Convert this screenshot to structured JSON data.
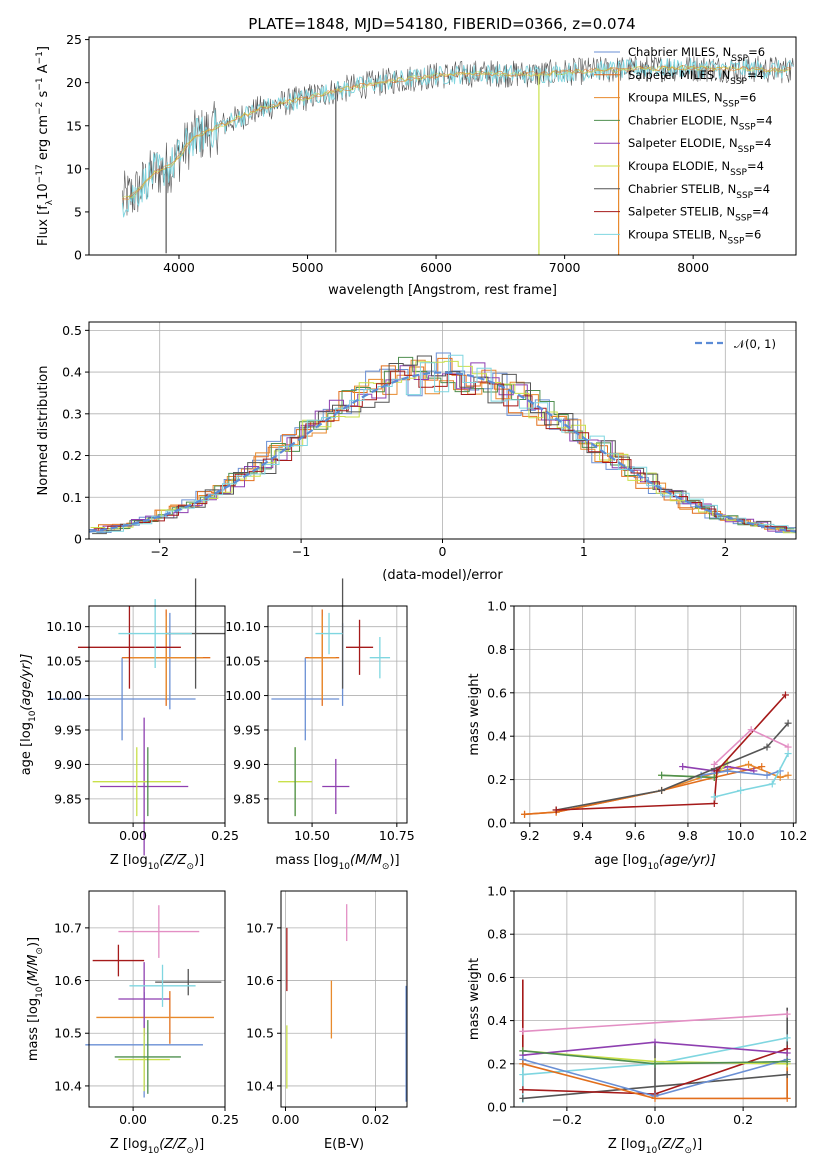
{
  "figure": {
    "title": "PLATE=1848, MJD=54180, FIBERID=0366, z=0.074"
  },
  "models": [
    {
      "name": "Chabrier MILES",
      "nssp": "6",
      "color": "#6a8fd4"
    },
    {
      "name": "Salpeter MILES",
      "nssp": "4",
      "color": "#e26f1c"
    },
    {
      "name": "Kroupa MILES",
      "nssp": "6",
      "color": "#e88a2d"
    },
    {
      "name": "Chabrier ELODIE",
      "nssp": "4",
      "color": "#4f8f4f"
    },
    {
      "name": "Salpeter ELODIE",
      "nssp": "4",
      "color": "#8e3fb0"
    },
    {
      "name": "Kroupa ELODIE",
      "nssp": "4",
      "color": "#c9e04a"
    },
    {
      "name": "Chabrier STELIB",
      "nssp": "4",
      "color": "#555555"
    },
    {
      "name": "Salpeter STELIB",
      "nssp": "4",
      "color": "#a51a1a"
    },
    {
      "name": "Kroupa STELIB",
      "nssp": "6",
      "color": "#7fd6e0"
    }
  ],
  "chart_data": [
    {
      "id": "spectrum",
      "type": "line",
      "xlabel": "wavelength [Angstrom, rest frame]",
      "ylabel_main": "Flux [f",
      "ylabel_sub": "λ",
      "ylabel_rest": "10",
      "ylabel_sup1": "−17",
      "ylabel_mid": " erg cm",
      "ylabel_sup2": "−2",
      "ylabel_mid2": " s",
      "ylabel_sup3": "−1",
      "ylabel_mid3": " A",
      "ylabel_sup4": "−1",
      "ylabel_end": "]",
      "xlim": [
        3300,
        8800
      ],
      "ylim": [
        0,
        25.3
      ],
      "xticks": [
        4000,
        5000,
        6000,
        7000,
        8000
      ],
      "yticks": [
        0,
        5,
        10,
        15,
        20,
        25
      ],
      "continuum": {
        "x": [
          3560,
          3650,
          3800,
          3950,
          4100,
          4250,
          4400,
          4600,
          4800,
          5000,
          5200,
          5400,
          5600,
          5800,
          6000,
          6200,
          6400,
          6600,
          6800,
          7000,
          7200,
          7400,
          7600,
          7800,
          8000,
          8200,
          8400,
          8600,
          8780
        ],
        "y": [
          6.5,
          7.0,
          9.5,
          10.5,
          13.5,
          14.5,
          15.5,
          16.8,
          17.6,
          18.3,
          19.0,
          19.6,
          20.1,
          20.5,
          20.8,
          21.0,
          21.1,
          21.0,
          21.0,
          21.2,
          21.4,
          21.5,
          21.6,
          21.7,
          21.7,
          21.6,
          21.6,
          21.5,
          21.5
        ]
      },
      "dropouts": [
        {
          "x": 3900,
          "y": 0.2
        },
        {
          "x": 5220,
          "y": 0.3
        },
        {
          "x": 6800,
          "y": 0.0
        },
        {
          "x": 7420,
          "y": 0.0
        }
      ],
      "legend": "upper right"
    },
    {
      "id": "residuals",
      "type": "histogram",
      "xlabel": "(data-model)/error",
      "ylabel": "Normed distribution",
      "xlim": [
        -2.5,
        2.5
      ],
      "ylim": [
        0,
        0.52
      ],
      "xticks": [
        -2,
        -1,
        0,
        1,
        2
      ],
      "yticks": [
        0,
        0.1,
        0.2,
        0.3,
        0.4,
        0.5
      ],
      "bin_width": 0.1,
      "reference_label": "𝒩(0, 1)",
      "reference_color": "#5b8bd6",
      "legend": "upper right"
    },
    {
      "id": "age-vs-Z",
      "type": "errorbar",
      "xlabel": "Z [log",
      "xlabel_sub": "10",
      "xlabel_rest": "(Z/Z",
      "xlabel_sub2": "⊙",
      "xlabel_end": ")]",
      "ylabel": "age  [log",
      "ylabel_sub": "10",
      "ylabel_rest": "(age/yr)]",
      "xlim": [
        -0.12,
        0.25
      ],
      "ylim": [
        9.815,
        10.13
      ],
      "xticks": [
        0.0,
        0.25
      ],
      "xticklabels": [
        "0.00",
        "0.25"
      ],
      "yticks": [
        9.85,
        9.9,
        9.95,
        10.0,
        10.05,
        10.1
      ],
      "yticklabels": [
        "9.85",
        "9.90",
        "9.95",
        "10.00",
        "10.05",
        "10.10"
      ],
      "points": [
        {
          "model": 0,
          "x": -0.03,
          "xerr": 0.2,
          "y": 9.995,
          "yerr": 0.06
        },
        {
          "model": 0,
          "x": 0.1,
          "xerr": 0.0,
          "y": 10.05,
          "yerr": 0.07
        },
        {
          "model": 1,
          "x": 0.09,
          "xerr": 0.12,
          "y": 10.055,
          "yerr": 0.07
        },
        {
          "model": 2,
          "x": 0.09,
          "xerr": 0.1,
          "y": 10.055,
          "yerr": 0.06
        },
        {
          "model": 4,
          "x": 0.03,
          "xerr": 0.12,
          "y": 9.868,
          "yerr": 0.1
        },
        {
          "model": 5,
          "x": 0.01,
          "xerr": 0.12,
          "y": 9.875,
          "yerr": 0.05
        },
        {
          "model": 3,
          "x": 0.04,
          "xerr": 0.0,
          "y": 9.875,
          "yerr": 0.05
        },
        {
          "model": 6,
          "x": 0.17,
          "xerr": 0.08,
          "y": 10.09,
          "yerr": 0.08
        },
        {
          "model": 7,
          "x": -0.01,
          "xerr": 0.14,
          "y": 10.07,
          "yerr": 0.06
        },
        {
          "model": 8,
          "x": 0.06,
          "xerr": 0.1,
          "y": 10.09,
          "yerr": 0.05
        }
      ]
    },
    {
      "id": "age-vs-mass",
      "type": "errorbar",
      "xlabel": "mass [log",
      "xlabel_sub": "10",
      "xlabel_rest": "(M/M",
      "xlabel_sub2": "⊙",
      "xlabel_end": ")]",
      "xlim": [
        10.37,
        10.78
      ],
      "ylim": [
        9.815,
        10.13
      ],
      "xticks": [
        10.5,
        10.75
      ],
      "xticklabels": [
        "10.50",
        "10.75"
      ],
      "yticks": [
        9.85,
        9.9,
        9.95,
        10.0,
        10.05,
        10.1
      ],
      "yticklabels": [
        "9.85",
        "9.90",
        "9.95",
        "10.00",
        "10.05",
        "10.10"
      ],
      "points": [
        {
          "model": 0,
          "x": 10.48,
          "xerr": 0.1,
          "y": 9.995,
          "yerr": 0.06
        },
        {
          "model": 0,
          "x": 10.59,
          "xerr": 0.0,
          "y": 10.045,
          "yerr": 0.06
        },
        {
          "model": 1,
          "x": 10.53,
          "xerr": 0.05,
          "y": 10.055,
          "yerr": 0.07
        },
        {
          "model": 2,
          "x": 10.53,
          "xerr": 0.04,
          "y": 10.055,
          "yerr": 0.06
        },
        {
          "model": 4,
          "x": 10.57,
          "xerr": 0.04,
          "y": 9.868,
          "yerr": 0.04
        },
        {
          "model": 5,
          "x": 10.45,
          "xerr": 0.05,
          "y": 9.875,
          "yerr": 0.05
        },
        {
          "model": 3,
          "x": 10.45,
          "xerr": 0.0,
          "y": 9.875,
          "yerr": 0.05
        },
        {
          "model": 6,
          "x": 10.59,
          "xerr": 0.0,
          "y": 10.09,
          "yerr": 0.08
        },
        {
          "model": 7,
          "x": 10.64,
          "xerr": 0.04,
          "y": 10.07,
          "yerr": 0.04
        },
        {
          "model": 8,
          "x": 10.7,
          "xerr": 0.03,
          "y": 10.055,
          "yerr": 0.03
        },
        {
          "model": 8,
          "x": 10.55,
          "xerr": 0.04,
          "y": 10.09,
          "yerr": 0.03
        }
      ]
    },
    {
      "id": "massweight-vs-age",
      "type": "line",
      "xlabel": "age  [log",
      "xlabel_sub": "10",
      "xlabel_rest": "(age/yr)]",
      "ylabel": "mass weight",
      "xlim": [
        9.14,
        10.21
      ],
      "ylim": [
        0,
        1.0
      ],
      "xticks": [
        9.2,
        9.4,
        9.6,
        9.8,
        10.0,
        10.2
      ],
      "xticklabels": [
        "9.2",
        "9.4",
        "9.6",
        "9.8",
        "10.0",
        "10.2"
      ],
      "yticks": [
        0,
        0.2,
        0.4,
        0.6,
        0.8,
        1.0
      ],
      "yticklabels": [
        "0.0",
        "0.2",
        "0.4",
        "0.6",
        "0.8",
        "1.0"
      ],
      "series": [
        {
          "model": 2,
          "x": [
            9.18,
            9.3,
            9.7,
            9.9,
            10.03,
            10.15,
            10.18
          ],
          "y": [
            0.04,
            0.05,
            0.15,
            0.23,
            0.27,
            0.21,
            0.22
          ]
        },
        {
          "model": 1,
          "x": [
            9.18,
            9.3,
            9.7,
            9.9,
            10.08
          ],
          "y": [
            0.04,
            0.05,
            0.15,
            0.21,
            0.26
          ]
        },
        {
          "model": 4,
          "x": [
            9.78,
            9.9,
            9.95,
            10.05
          ],
          "y": [
            0.26,
            0.24,
            0.26,
            0.24
          ]
        },
        {
          "model": 5,
          "x": [
            9.7,
            9.9,
            9.95
          ],
          "y": [
            0.22,
            0.21,
            0.28
          ]
        },
        {
          "model": 3,
          "x": [
            9.7,
            9.9
          ],
          "y": [
            0.22,
            0.21
          ]
        },
        {
          "model": 0,
          "x": [
            9.85,
            9.95,
            10.1,
            10.15
          ],
          "y": [
            0.22,
            0.24,
            0.22,
            0.24
          ]
        },
        {
          "model": 6,
          "x": [
            9.3,
            9.7,
            9.9,
            10.1,
            10.18
          ],
          "y": [
            0.06,
            0.15,
            0.25,
            0.35,
            0.46
          ]
        },
        {
          "model": 7,
          "x": [
            9.3,
            9.9,
            9.91,
            10.17
          ],
          "y": [
            0.06,
            0.09,
            0.24,
            0.59
          ]
        },
        {
          "model": 8,
          "x": [
            9.9,
            10.0,
            10.12,
            10.18
          ],
          "y": [
            0.12,
            0.15,
            0.18,
            0.32
          ]
        },
        {
          "model": 2,
          "x": [
            9.9,
            10.04,
            10.18
          ],
          "y": [
            0.27,
            0.43,
            0.35
          ],
          "color": "#e38fc4"
        }
      ]
    },
    {
      "id": "mass-vs-Z",
      "type": "errorbar",
      "xlabel": "Z [log",
      "xlabel_sub": "10",
      "xlabel_rest": "(Z/Z",
      "xlabel_sub2": "⊙",
      "xlabel_end": ")]",
      "ylabel": "mass [log",
      "ylabel_sub": "10",
      "ylabel_rest": "(M/M",
      "ylabel_sub2": "⊙",
      "ylabel_end": ")]",
      "xlim": [
        -0.12,
        0.25
      ],
      "ylim": [
        10.36,
        10.77
      ],
      "xticks": [
        0.0,
        0.25
      ],
      "xticklabels": [
        "0.00",
        "0.25"
      ],
      "yticks": [
        10.4,
        10.5,
        10.6,
        10.7
      ],
      "yticklabels": [
        "10.4",
        "10.5",
        "10.6",
        "10.7"
      ],
      "points": [
        {
          "model": 0,
          "x": 0.03,
          "xerr": 0.16,
          "y": 10.478,
          "yerr": 0.1
        },
        {
          "model": 1,
          "x": 0.1,
          "xerr": 0.0,
          "y": 10.53,
          "yerr": 0.05
        },
        {
          "model": 2,
          "x": 0.06,
          "xerr": 0.16,
          "y": 10.53,
          "yerr": 0.0
        },
        {
          "model": 4,
          "x": 0.03,
          "xerr": 0.07,
          "y": 10.565,
          "yerr": 0.07
        },
        {
          "model": 5,
          "x": 0.03,
          "xerr": 0.07,
          "y": 10.45,
          "yerr": 0.06
        },
        {
          "model": 3,
          "x": 0.04,
          "xerr": 0.09,
          "y": 10.455,
          "yerr": 0.07
        },
        {
          "model": 6,
          "x": 0.15,
          "xerr": 0.09,
          "y": 10.597,
          "yerr": 0.025
        },
        {
          "model": 7,
          "x": -0.04,
          "xerr": 0.07,
          "y": 10.638,
          "yerr": 0.03
        },
        {
          "model": 8,
          "x": 0.08,
          "xerr": 0.09,
          "y": 10.59,
          "yerr": 0.04
        },
        {
          "model": 2,
          "x": 0.07,
          "xerr": 0.11,
          "y": 10.693,
          "yerr": 0.05,
          "color": "#e38fc4"
        }
      ]
    },
    {
      "id": "mass-vs-ebv",
      "type": "errorbar",
      "xlabel": "E(B-V)",
      "xlim": [
        -0.001,
        0.027
      ],
      "ylim": [
        10.36,
        10.77
      ],
      "xticks": [
        0.0,
        0.02
      ],
      "xticklabels": [
        "0.00",
        "0.02"
      ],
      "yticks": [
        10.4,
        10.5,
        10.6,
        10.7
      ],
      "yticklabels": [
        "10.4",
        "10.5",
        "10.6",
        "10.7"
      ],
      "points": [
        {
          "model": 7,
          "x": 0.0003,
          "xerr": 0.0,
          "y": 10.64,
          "yerr": 0.06
        },
        {
          "model": 5,
          "x": 0.0003,
          "xerr": 0.0,
          "y": 10.455,
          "yerr": 0.06
        },
        {
          "model": 2,
          "x": 0.0102,
          "xerr": 0.0,
          "y": 10.545,
          "yerr": 0.055
        },
        {
          "model": 0,
          "x": 0.0268,
          "xerr": 0.0,
          "y": 10.48,
          "yerr": 0.11
        },
        {
          "model": 2,
          "x": 0.0136,
          "xerr": 0.0,
          "y": 10.71,
          "yerr": 0.035,
          "color": "#e38fc4"
        }
      ]
    },
    {
      "id": "massweight-vs-Z",
      "type": "line",
      "xlabel": "Z [log",
      "xlabel_sub": "10",
      "xlabel_rest": "(Z/Z",
      "xlabel_sub2": "⊙",
      "xlabel_end": ")]",
      "ylabel": "mass weight",
      "xlim": [
        -0.32,
        0.32
      ],
      "ylim": [
        0,
        1.0
      ],
      "xticks": [
        -0.2,
        0.0,
        0.2
      ],
      "xticklabels": [
        "−0.2",
        "0.0",
        "0.2"
      ],
      "yticks": [
        0,
        0.2,
        0.4,
        0.6,
        0.8,
        1.0
      ],
      "yticklabels": [
        "0.0",
        "0.2",
        "0.4",
        "0.6",
        "0.8",
        "1.0"
      ],
      "series": [
        {
          "model": 2,
          "x": [
            -0.3,
            0.3
          ],
          "y": [
            0.35,
            0.43
          ],
          "color": "#e38fc4"
        },
        {
          "model": 6,
          "x": [
            -0.3,
            0.3
          ],
          "y": [
            0.04,
            0.15
          ]
        },
        {
          "model": 7,
          "x": [
            -0.3,
            0.0,
            0.3
          ],
          "y": [
            0.08,
            0.06,
            0.27
          ]
        },
        {
          "model": 8,
          "x": [
            -0.3,
            0.0,
            0.3
          ],
          "y": [
            0.15,
            0.2,
            0.32
          ]
        },
        {
          "model": 5,
          "x": [
            -0.3,
            0.0,
            0.3
          ],
          "y": [
            0.26,
            0.21,
            0.2
          ]
        },
        {
          "model": 4,
          "x": [
            -0.3,
            0.0,
            0.3
          ],
          "y": [
            0.24,
            0.3,
            0.25
          ]
        },
        {
          "model": 0,
          "x": [
            -0.3,
            0.0,
            0.3
          ],
          "y": [
            0.22,
            0.05,
            0.22
          ]
        },
        {
          "model": 1,
          "x": [
            -0.3,
            0.0,
            0.3
          ],
          "y": [
            0.2,
            0.04,
            0.04
          ]
        },
        {
          "model": 3,
          "x": [
            -0.3,
            0.0,
            0.3
          ],
          "y": [
            0.26,
            0.2,
            0.21
          ]
        }
      ],
      "verticals": [
        {
          "model": 7,
          "x": -0.3,
          "y": [
            0.08,
            0.59
          ]
        },
        {
          "model": 6,
          "x": 0.3,
          "y": [
            0.04,
            0.46
          ]
        },
        {
          "model": 8,
          "x": -0.3,
          "y": [
            0.02,
            0.26
          ]
        },
        {
          "model": 1,
          "x": 0.3,
          "y": [
            0.04,
            0.27
          ]
        },
        {
          "model": 6,
          "x": 0.0,
          "y": [
            0.05,
            0.3
          ]
        }
      ]
    }
  ]
}
